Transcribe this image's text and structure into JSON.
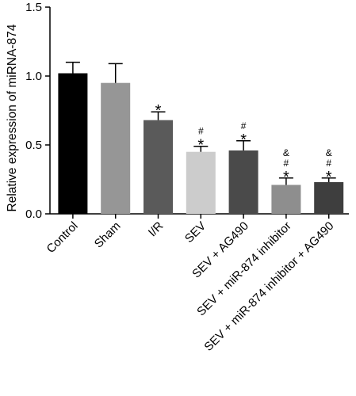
{
  "chart_data": {
    "type": "bar",
    "title": "",
    "xlabel": "",
    "ylabel": "Relative expression of miRNA-874",
    "ylim": [
      0,
      1.5
    ],
    "yticks": [
      "0.0",
      "0.5",
      "1.0",
      "1.5"
    ],
    "grid": false,
    "categories": [
      "Control",
      "Sham",
      "I/R",
      "SEV",
      "SEV + AG490",
      "SEV + miR-874 inhibitor",
      "SEV + miR-874 inhibitor + AG490"
    ],
    "values": [
      1.02,
      0.95,
      0.68,
      0.45,
      0.46,
      0.21,
      0.23
    ],
    "errors": [
      0.08,
      0.14,
      0.06,
      0.04,
      0.07,
      0.05,
      0.03
    ],
    "colors": [
      "#000000",
      "#969696",
      "#5a5a5a",
      "#cccccc",
      "#4a4a4a",
      "#8e8e8e",
      "#3e3e3e"
    ],
    "annotations": [
      [],
      [],
      [
        "*"
      ],
      [
        "*",
        "#"
      ],
      [
        "*",
        "#"
      ],
      [
        "*",
        "#",
        "&"
      ],
      [
        "*",
        "#",
        "&"
      ]
    ]
  }
}
